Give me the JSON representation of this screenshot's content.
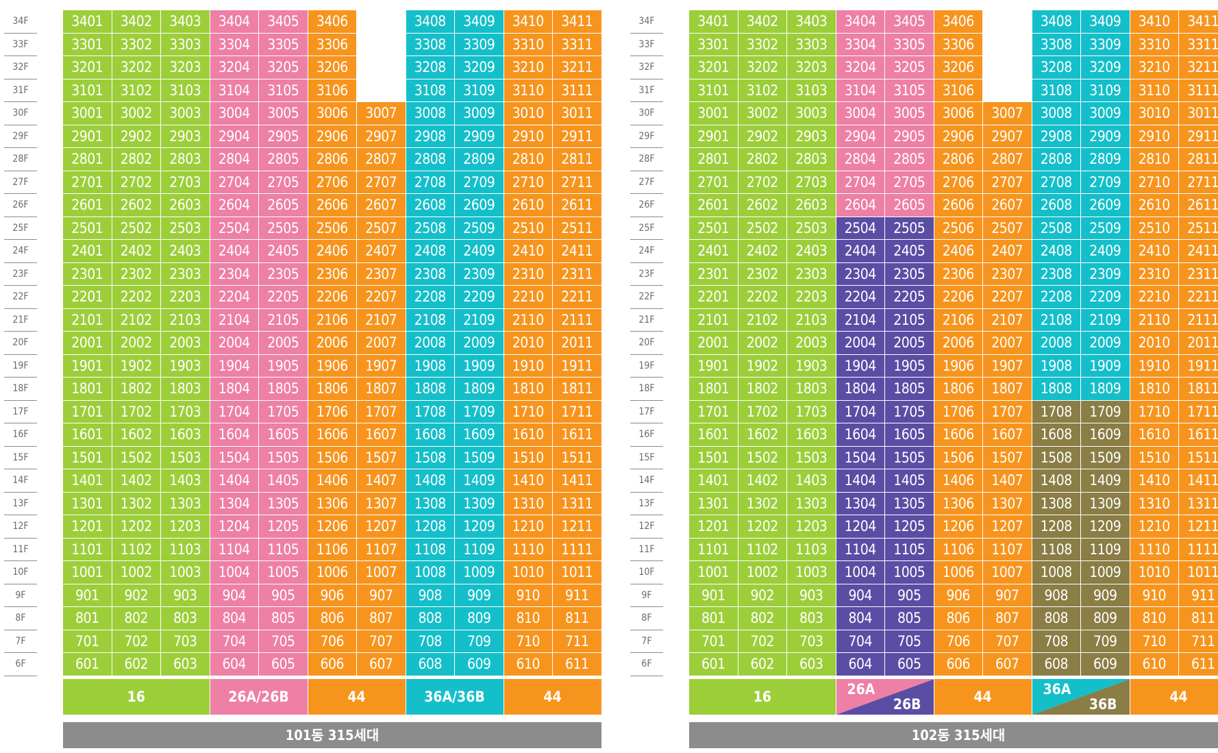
{
  "colors": {
    "green": "#9cce3a",
    "pink": "#ee7fa5",
    "orange": "#f7941d",
    "cyan": "#14bfca",
    "purple": "#5a4da4",
    "olive": "#8a7d45",
    "total_bar": "#8c8c8e",
    "floor_label_text": "#6a6a6a"
  },
  "buildings": [
    {
      "id": "101",
      "total_label": "101동 315세대",
      "floor_count_top": 34,
      "floor_count_bottom": 6,
      "unit_columns": [
        1,
        2,
        3,
        4,
        5,
        6,
        7,
        8,
        9,
        10,
        11
      ],
      "missing_units": [
        "3407",
        "3307",
        "3207",
        "3107"
      ],
      "column_color_rules": [
        {
          "columns": [
            1,
            2,
            3
          ],
          "color": "green"
        },
        {
          "columns": [
            4,
            5
          ],
          "color": "pink"
        },
        {
          "columns": [
            6,
            7
          ],
          "color": "orange"
        },
        {
          "columns": [
            8,
            9
          ],
          "color": "cyan"
        },
        {
          "columns": [
            10,
            11
          ],
          "color": "orange"
        }
      ],
      "types": [
        {
          "label": "16",
          "span": 3,
          "color": "green"
        },
        {
          "label": "26A/26B",
          "span": 2,
          "color": "pink"
        },
        {
          "label": "44",
          "span": 2,
          "color": "orange"
        },
        {
          "label": "36A/36B",
          "span": 2,
          "color": "cyan"
        },
        {
          "label": "44",
          "span": 2,
          "color": "orange"
        }
      ]
    },
    {
      "id": "102",
      "total_label": "102동 315세대",
      "floor_count_top": 34,
      "floor_count_bottom": 6,
      "unit_columns": [
        1,
        2,
        3,
        4,
        5,
        6,
        7,
        8,
        9,
        10,
        11
      ],
      "missing_units": [
        "3407",
        "3307",
        "3207",
        "3107"
      ],
      "column_color_rules": [
        {
          "columns": [
            1,
            2,
            3
          ],
          "color": "green"
        },
        {
          "columns": [
            4,
            5
          ],
          "color": "pink",
          "floors_from": 26,
          "floors_to": 34
        },
        {
          "columns": [
            4,
            5
          ],
          "color": "purple",
          "floors_from": 6,
          "floors_to": 25
        },
        {
          "columns": [
            6,
            7
          ],
          "color": "orange"
        },
        {
          "columns": [
            8,
            9
          ],
          "color": "cyan",
          "floors_from": 18,
          "floors_to": 34
        },
        {
          "columns": [
            8,
            9
          ],
          "color": "olive",
          "floors_from": 6,
          "floors_to": 17
        },
        {
          "columns": [
            10,
            11
          ],
          "color": "orange"
        }
      ],
      "types": [
        {
          "label": "16",
          "span": 3,
          "color": "green"
        },
        {
          "label_a": "26A",
          "label_b": "26B",
          "span": 2,
          "color_a": "pink",
          "color_b": "purple",
          "split": true
        },
        {
          "label": "44",
          "span": 2,
          "color": "orange"
        },
        {
          "label_a": "36A",
          "label_b": "36B",
          "span": 2,
          "color_a": "cyan",
          "color_b": "olive",
          "split": true
        },
        {
          "label": "44",
          "span": 2,
          "color": "orange"
        }
      ]
    }
  ]
}
